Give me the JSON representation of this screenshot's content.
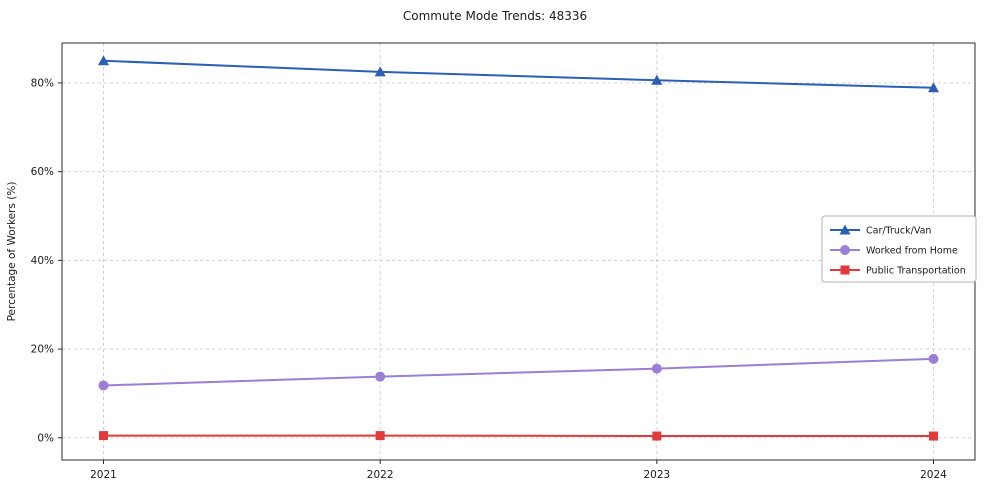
{
  "chart_data": {
    "type": "line",
    "title": "Commute Mode Trends: 48336",
    "xlabel": "",
    "ylabel": "Percentage of Workers (%)",
    "x": [
      2021,
      2022,
      2023,
      2024
    ],
    "x_tick_labels": [
      "2021",
      "2022",
      "2023",
      "2024"
    ],
    "y_ticks": [
      0,
      20,
      40,
      60,
      80
    ],
    "y_tick_labels": [
      "0%",
      "20%",
      "40%",
      "60%",
      "80%"
    ],
    "xlim": [
      2020.85,
      2024.15
    ],
    "ylim": [
      -5,
      89
    ],
    "grid": true,
    "grid_style": "dashed",
    "legend_position": "center-right",
    "series": [
      {
        "name": "Car/Truck/Van",
        "color": "#2a5fb4",
        "marker": "triangle",
        "values": [
          85.0,
          82.5,
          80.6,
          78.9
        ]
      },
      {
        "name": "Worked from Home",
        "color": "#9b7fd6",
        "marker": "circle",
        "values": [
          11.8,
          13.8,
          15.6,
          17.8
        ]
      },
      {
        "name": "Public Transportation",
        "color": "#e03a3a",
        "marker": "square",
        "values": [
          0.5,
          0.5,
          0.4,
          0.4
        ]
      }
    ]
  }
}
